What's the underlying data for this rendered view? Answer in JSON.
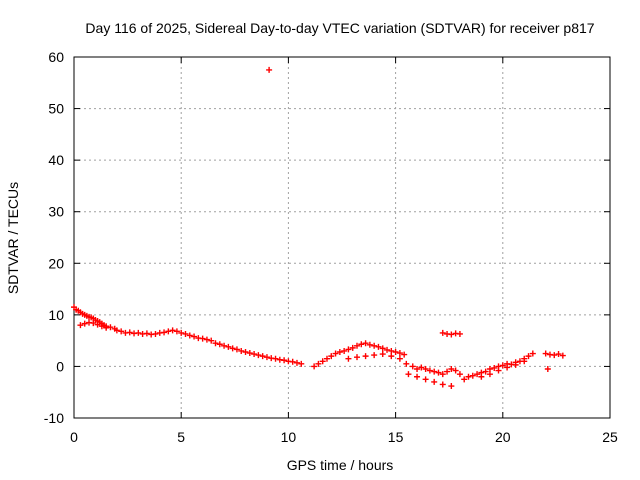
{
  "chart_data": {
    "type": "scatter",
    "title": "Day 116 of 2025, Sidereal Day-to-day VTEC variation (SDTVAR) for receiver p817",
    "xlabel": "GPS time / hours",
    "ylabel": "SDTVAR / TECUs",
    "xlim": [
      0,
      25
    ],
    "ylim": [
      -10,
      60
    ],
    "xticks": [
      0,
      5,
      10,
      15,
      20,
      25
    ],
    "yticks": [
      -10,
      0,
      10,
      20,
      30,
      40,
      50,
      60
    ],
    "grid": true,
    "marker": "+",
    "color": "#ff0000",
    "series": [
      {
        "name": "SDTVAR",
        "x": [
          0.0,
          0.1,
          0.2,
          0.3,
          0.4,
          0.5,
          0.6,
          0.7,
          0.8,
          0.9,
          1.0,
          1.1,
          1.2,
          1.3,
          1.4,
          1.5,
          0.3,
          0.5,
          0.7,
          0.9,
          1.1,
          1.3,
          1.5,
          1.7,
          1.9,
          2.0,
          2.2,
          2.4,
          2.6,
          2.8,
          3.0,
          3.2,
          3.4,
          3.6,
          3.8,
          4.0,
          4.2,
          4.4,
          4.6,
          4.8,
          5.0,
          5.2,
          5.4,
          5.6,
          5.8,
          6.0,
          6.2,
          6.4,
          6.6,
          6.8,
          7.0,
          7.2,
          7.4,
          7.6,
          7.8,
          8.0,
          8.2,
          8.4,
          8.6,
          8.8,
          9.0,
          9.2,
          9.4,
          9.6,
          9.8,
          10.0,
          10.2,
          10.4,
          10.6,
          9.1,
          11.2,
          11.4,
          11.6,
          11.8,
          12.0,
          12.2,
          12.4,
          12.6,
          12.8,
          13.0,
          13.2,
          13.4,
          13.6,
          13.8,
          14.0,
          14.2,
          14.4,
          14.6,
          14.8,
          15.0,
          15.2,
          15.4,
          12.8,
          13.2,
          13.6,
          14.0,
          14.4,
          14.8,
          15.2,
          15.5,
          15.8,
          16.0,
          16.2,
          16.4,
          16.6,
          16.8,
          17.0,
          17.2,
          17.4,
          17.6,
          17.8,
          15.6,
          16.0,
          16.4,
          16.8,
          17.2,
          17.6,
          18.0,
          17.2,
          17.4,
          17.6,
          17.8,
          18.0,
          18.2,
          18.4,
          18.6,
          18.8,
          19.0,
          19.2,
          19.4,
          19.6,
          19.8,
          20.0,
          20.2,
          20.4,
          20.6,
          20.8,
          21.0,
          21.2,
          21.4,
          19.0,
          19.4,
          19.8,
          20.2,
          20.6,
          21.0,
          22.0,
          22.2,
          22.4,
          22.6,
          22.8,
          22.1
        ],
        "y": [
          11.5,
          11.0,
          10.8,
          10.5,
          10.2,
          10.0,
          9.8,
          9.6,
          9.5,
          9.3,
          9.0,
          8.8,
          8.6,
          8.3,
          8.0,
          7.8,
          8.0,
          8.3,
          8.5,
          8.4,
          8.1,
          7.8,
          7.5,
          7.6,
          7.3,
          7.0,
          6.8,
          6.5,
          6.6,
          6.4,
          6.5,
          6.3,
          6.4,
          6.2,
          6.3,
          6.5,
          6.6,
          6.8,
          7.0,
          6.8,
          6.5,
          6.3,
          6.0,
          5.8,
          5.5,
          5.4,
          5.2,
          5.0,
          4.5,
          4.3,
          4.0,
          3.8,
          3.5,
          3.3,
          3.0,
          2.8,
          2.6,
          2.4,
          2.2,
          2.0,
          1.8,
          1.6,
          1.5,
          1.3,
          1.2,
          1.0,
          0.9,
          0.7,
          0.5,
          57.5,
          0.0,
          0.5,
          1.0,
          1.5,
          2.0,
          2.5,
          2.8,
          3.0,
          3.3,
          3.6,
          4.0,
          4.3,
          4.5,
          4.2,
          4.0,
          3.8,
          3.5,
          3.2,
          3.0,
          2.8,
          2.6,
          2.3,
          1.5,
          1.8,
          2.0,
          2.2,
          2.4,
          2.0,
          1.5,
          0.5,
          0.0,
          -0.5,
          -0.2,
          -0.5,
          -0.8,
          -1.0,
          -1.2,
          -1.5,
          -1.0,
          -0.5,
          -0.8,
          -1.5,
          -2.0,
          -2.5,
          -3.0,
          -3.5,
          -3.8,
          -1.5,
          6.5,
          6.3,
          6.2,
          6.4,
          6.3,
          -2.5,
          -2.0,
          -1.8,
          -1.5,
          -1.2,
          -1.0,
          -0.5,
          -0.3,
          0.0,
          0.2,
          0.5,
          0.4,
          0.8,
          1.0,
          1.5,
          2.0,
          2.5,
          -2.0,
          -1.5,
          -0.8,
          -0.2,
          0.3,
          1.0,
          2.5,
          2.3,
          2.2,
          2.4,
          2.1,
          -0.5
        ]
      }
    ]
  }
}
